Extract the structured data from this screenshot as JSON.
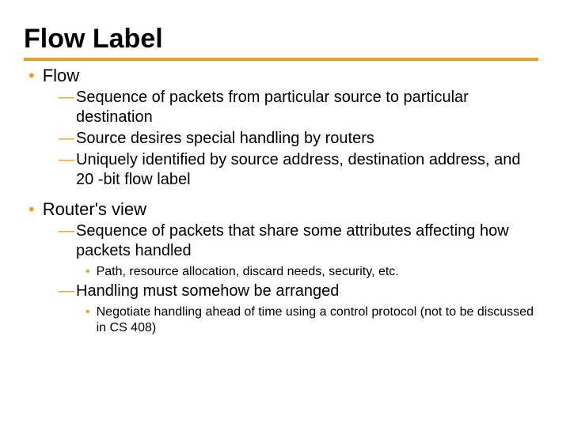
{
  "colors": {
    "accent": "#e3a220",
    "text": "#000000",
    "background": "#ffffff"
  },
  "typography": {
    "title_fontsize": 34,
    "title_weight": 900,
    "l1_fontsize": 22,
    "l2_fontsize": 20,
    "l3_fontsize": 16,
    "font_family": "Verdana"
  },
  "slide": {
    "title": "Flow Label",
    "bullets": [
      {
        "text": "Flow",
        "children": [
          {
            "text": "Sequence of packets from particular source to particular destination"
          },
          {
            "text": "Source desires special handling by routers"
          },
          {
            "text": "Uniquely identified by source address, destination address, and 20 -bit flow label"
          }
        ]
      },
      {
        "text": "Router's view",
        "children": [
          {
            "text": "Sequence of packets that share some attributes affecting how packets handled",
            "children": [
              {
                "text": "Path, resource allocation, discard needs, security, etc."
              }
            ]
          },
          {
            "text": "Handling must somehow be arranged",
            "children": [
              {
                "text": "Negotiate handling ahead of time using a control protocol (not to be discussed in CS 408)"
              }
            ]
          }
        ]
      }
    ]
  }
}
